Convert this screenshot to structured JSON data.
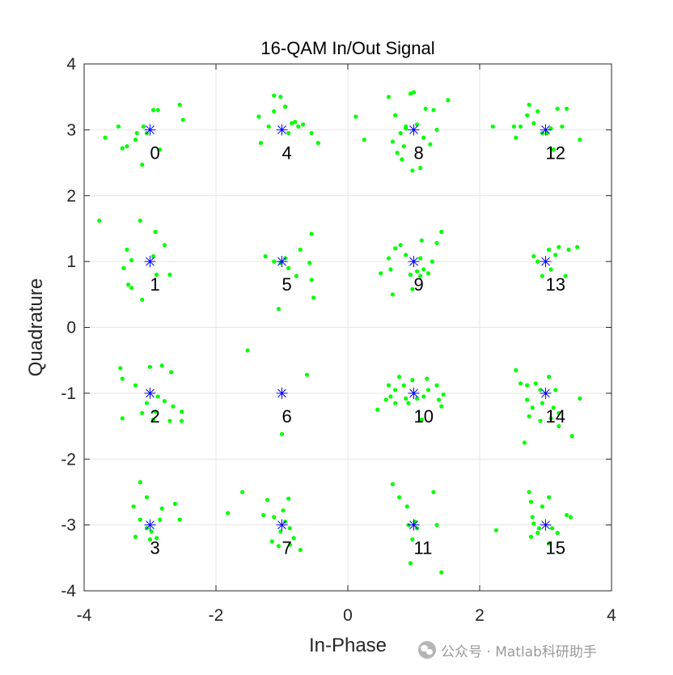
{
  "chart_data": {
    "type": "scatter",
    "title": "16-QAM In/Out Signal",
    "xlabel": "In-Phase",
    "ylabel": "Quadrature",
    "xlim": [
      -4,
      4
    ],
    "ylim": [
      -4,
      4
    ],
    "xticks": [
      -4,
      -2,
      0,
      2,
      4
    ],
    "yticks": [
      -4,
      -3,
      -2,
      -1,
      0,
      1,
      2,
      3,
      4
    ],
    "grid": true,
    "colors": {
      "received": "#00ff00",
      "reference": "#0000ff",
      "text": "#000000"
    },
    "reference_points": [
      {
        "label": "0",
        "x": -3,
        "y": 3
      },
      {
        "label": "1",
        "x": -3,
        "y": 1
      },
      {
        "label": "2",
        "x": -3,
        "y": -1
      },
      {
        "label": "3",
        "x": -3,
        "y": -3
      },
      {
        "label": "4",
        "x": -1,
        "y": 3
      },
      {
        "label": "5",
        "x": -1,
        "y": 1
      },
      {
        "label": "6",
        "x": -1,
        "y": -1
      },
      {
        "label": "7",
        "x": -1,
        "y": -3
      },
      {
        "label": "8",
        "x": 1,
        "y": 3
      },
      {
        "label": "9",
        "x": 1,
        "y": 1
      },
      {
        "label": "10",
        "x": 1,
        "y": -1
      },
      {
        "label": "11",
        "x": 1,
        "y": -3
      },
      {
        "label": "12",
        "x": 3,
        "y": 3
      },
      {
        "label": "13",
        "x": 3,
        "y": 1
      },
      {
        "label": "14",
        "x": 3,
        "y": -1
      },
      {
        "label": "15",
        "x": 3,
        "y": -3
      }
    ],
    "received_points": [
      [
        -3.68,
        2.88
      ],
      [
        -3.48,
        3.05
      ],
      [
        -3.35,
        2.75
      ],
      [
        -3.22,
        2.85
      ],
      [
        -3.12,
        2.47
      ],
      [
        -3.05,
        2.95
      ],
      [
        -2.95,
        3.3
      ],
      [
        -2.88,
        3.3
      ],
      [
        -2.55,
        3.38
      ],
      [
        -2.5,
        3.15
      ],
      [
        -2.85,
        2.7
      ],
      [
        -3.1,
        3.05
      ],
      [
        -3.42,
        2.72
      ],
      [
        -3.2,
        2.95
      ],
      [
        -3.77,
        1.62
      ],
      [
        -3.15,
        1.62
      ],
      [
        -3.35,
        1.18
      ],
      [
        -3.28,
        1.02
      ],
      [
        -3.4,
        0.9
      ],
      [
        -3.33,
        0.65
      ],
      [
        -3.28,
        0.6
      ],
      [
        -3.12,
        0.42
      ],
      [
        -2.92,
        1.45
      ],
      [
        -2.78,
        1.25
      ],
      [
        -2.9,
        0.8
      ],
      [
        -2.7,
        0.8
      ],
      [
        -2.95,
        1.08
      ],
      [
        -3.45,
        -0.62
      ],
      [
        -3.42,
        -0.78
      ],
      [
        -3.22,
        -0.88
      ],
      [
        -3.0,
        -0.6
      ],
      [
        -2.82,
        -0.58
      ],
      [
        -2.68,
        -0.68
      ],
      [
        -2.88,
        -1.05
      ],
      [
        -2.78,
        -1.12
      ],
      [
        -2.92,
        -1.28
      ],
      [
        -2.65,
        -1.2
      ],
      [
        -2.52,
        -1.28
      ],
      [
        -2.52,
        -1.42
      ],
      [
        -2.7,
        -1.42
      ],
      [
        -2.95,
        -1.4
      ],
      [
        -3.12,
        -1.3
      ],
      [
        -3.42,
        -1.38
      ],
      [
        -3.05,
        -1.15
      ],
      [
        -3.15,
        -2.35
      ],
      [
        -3.05,
        -2.58
      ],
      [
        -3.25,
        -2.72
      ],
      [
        -3.15,
        -2.92
      ],
      [
        -2.82,
        -2.75
      ],
      [
        -2.62,
        -2.68
      ],
      [
        -2.55,
        -2.92
      ],
      [
        -2.85,
        -2.92
      ],
      [
        -3.22,
        -3.18
      ],
      [
        -2.98,
        -3.1
      ],
      [
        -2.9,
        -3.2
      ],
      [
        -3.0,
        -3.22
      ],
      [
        -3.05,
        -3.05
      ],
      [
        -1.35,
        3.2
      ],
      [
        -1.12,
        3.52
      ],
      [
        -1.02,
        3.5
      ],
      [
        -0.95,
        3.35
      ],
      [
        -0.85,
        3.1
      ],
      [
        -0.8,
        3.12
      ],
      [
        -0.75,
        3.05
      ],
      [
        -0.68,
        3.08
      ],
      [
        -0.55,
        2.95
      ],
      [
        -0.45,
        2.8
      ],
      [
        -0.9,
        2.95
      ],
      [
        -1.2,
        3.05
      ],
      [
        -1.32,
        2.8
      ],
      [
        -1.12,
        3.28
      ],
      [
        -1.25,
        1.08
      ],
      [
        -1.02,
        0.98
      ],
      [
        -0.9,
        0.9
      ],
      [
        -0.72,
        1.18
      ],
      [
        -0.78,
        0.78
      ],
      [
        -0.55,
        1.42
      ],
      [
        -0.58,
        0.98
      ],
      [
        -0.55,
        0.72
      ],
      [
        -0.52,
        0.45
      ],
      [
        -1.05,
        0.28
      ],
      [
        -1.12,
        1.0
      ],
      [
        -0.95,
        1.05
      ],
      [
        -1.52,
        -0.35
      ],
      [
        -0.62,
        -0.72
      ],
      [
        -1.0,
        -1.62
      ],
      [
        -1.82,
        -2.82
      ],
      [
        -1.6,
        -2.5
      ],
      [
        -1.28,
        -2.85
      ],
      [
        -1.22,
        -2.62
      ],
      [
        -1.12,
        -2.88
      ],
      [
        -1.15,
        -3.25
      ],
      [
        -1.05,
        -3.32
      ],
      [
        -0.98,
        -2.78
      ],
      [
        -0.9,
        -2.6
      ],
      [
        -0.88,
        -3.05
      ],
      [
        -0.82,
        -3.2
      ],
      [
        -0.88,
        -3.3
      ],
      [
        -0.72,
        -3.38
      ],
      [
        -1.02,
        -3.1
      ],
      [
        -0.95,
        -2.95
      ],
      [
        0.12,
        3.2
      ],
      [
        0.25,
        2.85
      ],
      [
        0.62,
        3.5
      ],
      [
        0.72,
        3.22
      ],
      [
        0.68,
        2.82
      ],
      [
        0.8,
        2.95
      ],
      [
        0.88,
        3.02
      ],
      [
        0.75,
        2.65
      ],
      [
        0.82,
        2.55
      ],
      [
        0.88,
        3.05
      ],
      [
        0.95,
        3.55
      ],
      [
        1.0,
        3.57
      ],
      [
        1.05,
        3.08
      ],
      [
        1.15,
        2.88
      ],
      [
        1.18,
        3.32
      ],
      [
        1.3,
        3.3
      ],
      [
        1.35,
        3.0
      ],
      [
        1.25,
        2.78
      ],
      [
        1.1,
        2.42
      ],
      [
        0.98,
        2.38
      ],
      [
        1.52,
        3.45
      ],
      [
        0.85,
        2.75
      ],
      [
        0.5,
        0.82
      ],
      [
        0.62,
        1.05
      ],
      [
        0.65,
        0.88
      ],
      [
        0.72,
        1.2
      ],
      [
        0.8,
        1.25
      ],
      [
        0.88,
        1.1
      ],
      [
        0.95,
        0.8
      ],
      [
        1.05,
        0.85
      ],
      [
        1.1,
        1.05
      ],
      [
        1.15,
        0.88
      ],
      [
        1.22,
        0.82
      ],
      [
        1.28,
        1.0
      ],
      [
        1.35,
        1.28
      ],
      [
        1.42,
        1.45
      ],
      [
        1.12,
        1.32
      ],
      [
        0.68,
        0.5
      ],
      [
        0.98,
        0.58
      ],
      [
        1.1,
        0.78
      ],
      [
        0.45,
        -1.25
      ],
      [
        0.62,
        -0.88
      ],
      [
        0.65,
        -1.05
      ],
      [
        0.72,
        -1.15
      ],
      [
        0.72,
        -0.95
      ],
      [
        0.78,
        -0.75
      ],
      [
        0.85,
        -0.88
      ],
      [
        0.88,
        -1.08
      ],
      [
        0.92,
        -1.15
      ],
      [
        0.98,
        -0.8
      ],
      [
        1.05,
        -1.08
      ],
      [
        1.15,
        -1.05
      ],
      [
        1.22,
        -0.95
      ],
      [
        1.2,
        -0.78
      ],
      [
        1.35,
        -0.88
      ],
      [
        1.38,
        -1.1
      ],
      [
        1.45,
        -1.02
      ],
      [
        1.42,
        -1.2
      ],
      [
        1.12,
        -1.4
      ],
      [
        0.58,
        -1.1
      ],
      [
        0.68,
        -2.38
      ],
      [
        0.78,
        -2.58
      ],
      [
        0.9,
        -2.72
      ],
      [
        0.92,
        -3.0
      ],
      [
        1.02,
        -2.95
      ],
      [
        1.05,
        -3.05
      ],
      [
        0.98,
        -3.22
      ],
      [
        1.3,
        -2.5
      ],
      [
        1.35,
        -3.0
      ],
      [
        1.42,
        -3.72
      ],
      [
        0.95,
        -3.58
      ],
      [
        2.2,
        3.05
      ],
      [
        2.52,
        3.05
      ],
      [
        2.55,
        2.88
      ],
      [
        2.62,
        3.05
      ],
      [
        2.72,
        3.22
      ],
      [
        2.75,
        3.38
      ],
      [
        2.82,
        3.1
      ],
      [
        2.88,
        3.28
      ],
      [
        2.95,
        2.95
      ],
      [
        3.08,
        3.02
      ],
      [
        3.12,
        2.7
      ],
      [
        3.18,
        3.32
      ],
      [
        3.25,
        3.05
      ],
      [
        3.32,
        3.32
      ],
      [
        3.52,
        2.85
      ],
      [
        3.02,
        2.95
      ],
      [
        2.82,
        1.08
      ],
      [
        2.88,
        1.0
      ],
      [
        3.05,
        1.18
      ],
      [
        3.15,
        1.1
      ],
      [
        3.08,
        0.88
      ],
      [
        2.95,
        0.78
      ],
      [
        3.3,
        0.78
      ],
      [
        3.35,
        1.18
      ],
      [
        3.48,
        1.22
      ],
      [
        3.2,
        1.22
      ],
      [
        2.55,
        -0.65
      ],
      [
        2.62,
        -0.85
      ],
      [
        2.72,
        -0.88
      ],
      [
        2.85,
        -0.85
      ],
      [
        2.92,
        -0.95
      ],
      [
        2.95,
        -1.15
      ],
      [
        2.8,
        -1.22
      ],
      [
        2.72,
        -1.1
      ],
      [
        2.75,
        -1.35
      ],
      [
        3.05,
        -0.75
      ],
      [
        3.15,
        -0.95
      ],
      [
        3.12,
        -1.22
      ],
      [
        3.2,
        -1.3
      ],
      [
        3.08,
        -1.38
      ],
      [
        3.2,
        -1.5
      ],
      [
        3.4,
        -1.65
      ],
      [
        3.52,
        -1.08
      ],
      [
        2.68,
        -1.75
      ],
      [
        2.92,
        -1.42
      ],
      [
        2.25,
        -3.08
      ],
      [
        2.75,
        -2.5
      ],
      [
        2.78,
        -2.65
      ],
      [
        2.8,
        -2.88
      ],
      [
        2.82,
        -2.98
      ],
      [
        2.9,
        -3.05
      ],
      [
        2.88,
        -3.12
      ],
      [
        2.78,
        -3.18
      ],
      [
        2.95,
        -2.72
      ],
      [
        3.05,
        -2.58
      ],
      [
        3.1,
        -3.05
      ],
      [
        3.32,
        -2.85
      ],
      [
        3.38,
        -2.88
      ],
      [
        3.05,
        -3.28
      ],
      [
        3.18,
        -3.12
      ]
    ]
  },
  "watermark": {
    "text": "公众号 · Matlab科研助手",
    "icon": "wechat-icon"
  }
}
